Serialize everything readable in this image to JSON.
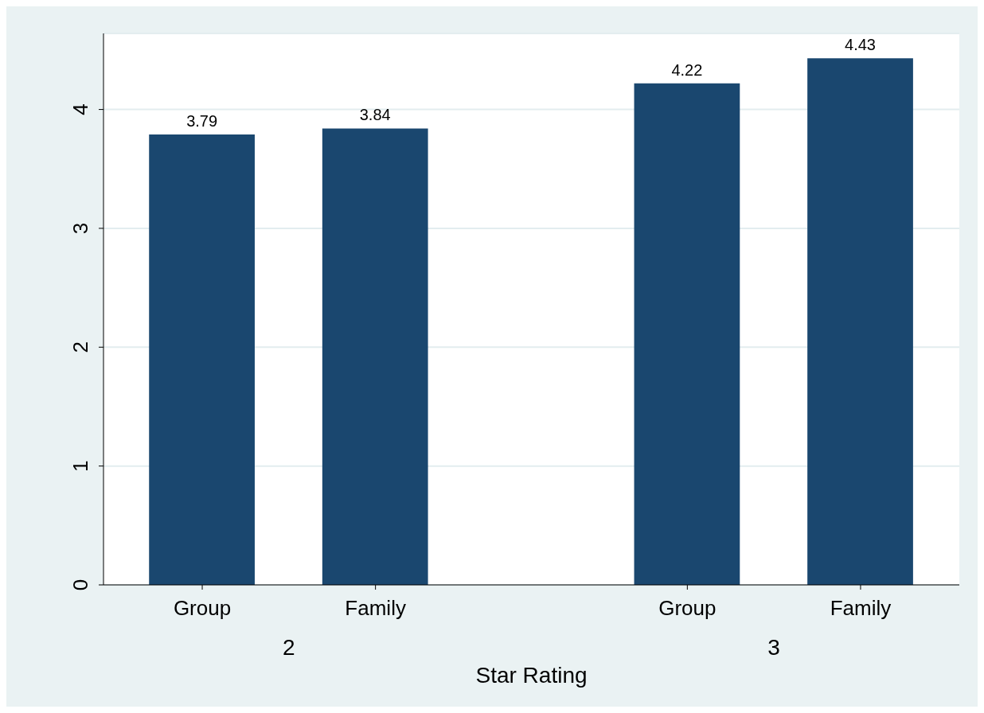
{
  "chart_data": {
    "type": "bar",
    "categories": [
      "Group",
      "Family",
      "Group",
      "Family"
    ],
    "values": [
      3.79,
      3.84,
      4.22,
      4.43
    ],
    "color": "#1a476f",
    "data_labels": true,
    "ylim": [
      0,
      4.64
    ],
    "yticks": [
      0,
      1,
      2,
      3,
      4
    ],
    "grid": "y",
    "xlabel": "Star Rating",
    "annotations": [
      "2",
      "3"
    ]
  }
}
